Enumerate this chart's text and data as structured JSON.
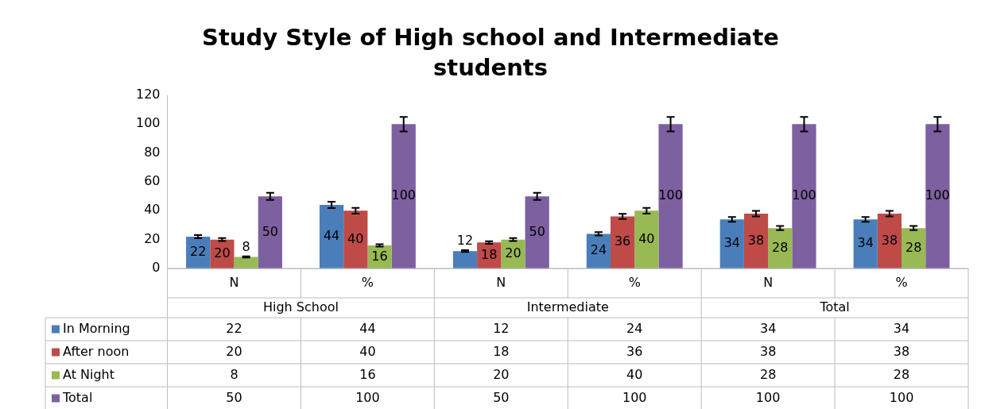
{
  "chart_data": {
    "type": "bar",
    "title": "Study Style of High school and Intermediate students",
    "categories": [
      "N",
      "%",
      "N",
      "%",
      "N",
      "%"
    ],
    "annotations": [
      "High School",
      "Intermediate",
      "Total",
      "22",
      "44",
      "12",
      "24",
      "34",
      "34",
      "20",
      "40",
      "18",
      "36",
      "38",
      "38",
      "8",
      "16",
      "20",
      "40",
      "28",
      "28",
      "50",
      "100",
      "50",
      "100",
      "100",
      "100"
    ],
    "series": [
      {
        "name": "In Morning",
        "color": "#4a7ebb",
        "values": [
          22,
          44,
          12,
          24,
          34,
          34
        ],
        "errors": [
          1.1,
          2.2,
          0.6,
          1.2,
          1.7,
          1.7
        ],
        "value_labels": [
          "22",
          "44",
          "12",
          "24",
          "34",
          "34"
        ]
      },
      {
        "name": "After noon",
        "color": "#be4b48",
        "values": [
          20,
          40,
          18,
          36,
          38,
          38
        ],
        "errors": [
          1,
          2,
          0.9,
          1.8,
          1.9,
          1.9
        ],
        "value_labels": [
          "20",
          "40",
          "18",
          "36",
          "38",
          "38"
        ]
      },
      {
        "name": "At Night",
        "color": "#98b954",
        "values": [
          8,
          16,
          20,
          40,
          28,
          28
        ],
        "errors": [
          0.4,
          0.8,
          1,
          2,
          1.4,
          1.4
        ],
        "value_labels": [
          "8",
          "16",
          "20",
          "40",
          "28",
          "28"
        ]
      },
      {
        "name": "Total",
        "color": "#7d60a0",
        "values": [
          50,
          100,
          50,
          100,
          100,
          100
        ],
        "errors": [
          2.5,
          5,
          2.5,
          5,
          5,
          5
        ],
        "value_labels": [
          "50",
          "100",
          "50",
          "100",
          "100",
          "100"
        ]
      }
    ],
    "ylim": [
      0,
      120
    ],
    "yticks": [
      0,
      20,
      40,
      60,
      80,
      100,
      120
    ],
    "grid": false,
    "legend": "bottom"
  }
}
